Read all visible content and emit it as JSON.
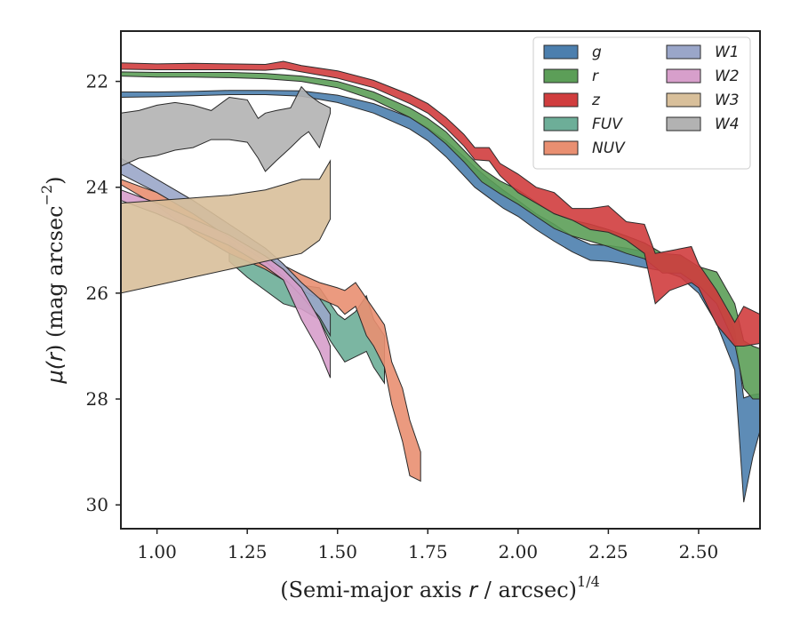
{
  "chart_data": {
    "type": "area",
    "title": "",
    "xlabel_main": "(Semi-major axis ",
    "xlabel_var": "r",
    "xlabel_unit": " / arcsec)",
    "xlabel_exp": "1/4",
    "ylabel_main": "μ(",
    "ylabel_var": "r",
    "ylabel_unit": ") (mag arcsec",
    "ylabel_exp": "−2",
    "ylabel_close": ")",
    "xlim": [
      0.9,
      2.67
    ],
    "ylim": [
      30.45,
      21.05
    ],
    "y_inverted": true,
    "grid": false,
    "legend_position": "top-right",
    "xticks": [
      1.0,
      1.25,
      1.5,
      1.75,
      2.0,
      2.25,
      2.5
    ],
    "xtick_labels": [
      "1.00",
      "1.25",
      "1.50",
      "1.75",
      "2.00",
      "2.25",
      "2.50"
    ],
    "yticks": [
      22,
      24,
      26,
      28,
      30
    ],
    "ytick_labels": [
      "22",
      "24",
      "26",
      "28",
      "30"
    ],
    "series": [
      {
        "name": "g",
        "color": "#4c7fae",
        "x": [
          0.9,
          1.0,
          1.1,
          1.2,
          1.3,
          1.4,
          1.5,
          1.6,
          1.7,
          1.75,
          1.8,
          1.85,
          1.88,
          1.92,
          1.96,
          2.0,
          2.05,
          2.1,
          2.15,
          2.2,
          2.25,
          2.3,
          2.35,
          2.4,
          2.45,
          2.5,
          2.55,
          2.6,
          2.625,
          2.65,
          2.67
        ],
        "y_lo": [
          22.2,
          22.2,
          22.19,
          22.17,
          22.17,
          22.18,
          22.26,
          22.42,
          22.68,
          22.88,
          23.12,
          23.42,
          23.62,
          23.85,
          24.06,
          24.25,
          24.5,
          24.7,
          24.93,
          25.08,
          25.1,
          25.15,
          25.22,
          25.28,
          25.3,
          25.55,
          25.98,
          26.7,
          27.98,
          27.92,
          27.9
        ],
        "y_hi": [
          22.3,
          22.29,
          22.27,
          22.25,
          22.25,
          22.28,
          22.4,
          22.6,
          22.9,
          23.12,
          23.42,
          23.78,
          24.0,
          24.2,
          24.4,
          24.55,
          24.8,
          25.02,
          25.22,
          25.38,
          25.4,
          25.45,
          25.52,
          25.58,
          25.7,
          26.0,
          26.58,
          27.45,
          29.95,
          29.1,
          28.6
        ]
      },
      {
        "name": "r",
        "color": "#5c9e58",
        "x": [
          0.9,
          1.0,
          1.1,
          1.2,
          1.3,
          1.4,
          1.5,
          1.6,
          1.7,
          1.75,
          1.8,
          1.85,
          1.9,
          1.95,
          2.0,
          2.05,
          2.1,
          2.15,
          2.2,
          2.25,
          2.3,
          2.35,
          2.4,
          2.45,
          2.5,
          2.55,
          2.6,
          2.625,
          2.65,
          2.67
        ],
        "y_lo": [
          21.82,
          21.83,
          21.83,
          21.83,
          21.85,
          21.9,
          22.0,
          22.2,
          22.5,
          22.7,
          22.95,
          23.3,
          23.65,
          23.88,
          24.05,
          24.28,
          24.5,
          24.62,
          24.7,
          24.8,
          24.92,
          25.05,
          25.25,
          25.28,
          25.5,
          25.6,
          26.2,
          26.9,
          27.0,
          27.05
        ],
        "y_hi": [
          21.9,
          21.92,
          21.92,
          21.93,
          21.95,
          22.0,
          22.12,
          22.35,
          22.68,
          22.9,
          23.18,
          23.52,
          23.9,
          24.12,
          24.32,
          24.55,
          24.78,
          24.92,
          25.02,
          25.12,
          25.25,
          25.35,
          25.62,
          25.62,
          25.85,
          26.2,
          26.95,
          27.8,
          28.0,
          28.0
        ]
      },
      {
        "name": "z",
        "color": "#d03d3e",
        "x": [
          0.9,
          1.0,
          1.1,
          1.2,
          1.3,
          1.35,
          1.4,
          1.5,
          1.6,
          1.7,
          1.75,
          1.8,
          1.85,
          1.88,
          1.92,
          1.95,
          2.0,
          2.05,
          2.1,
          2.15,
          2.2,
          2.25,
          2.3,
          2.35,
          2.38,
          2.42,
          2.48,
          2.5,
          2.55,
          2.6,
          2.625,
          2.67
        ],
        "y_lo": [
          21.65,
          21.67,
          21.66,
          21.67,
          21.68,
          21.62,
          21.7,
          21.8,
          21.98,
          22.25,
          22.42,
          22.68,
          23.0,
          23.25,
          23.25,
          23.55,
          23.75,
          24.0,
          24.1,
          24.4,
          24.4,
          24.35,
          24.65,
          24.7,
          25.25,
          25.2,
          25.12,
          25.45,
          25.95,
          26.55,
          26.25,
          26.4
        ],
        "y_hi": [
          21.77,
          21.78,
          21.78,
          21.78,
          21.79,
          21.76,
          21.82,
          21.94,
          22.12,
          22.42,
          22.6,
          22.88,
          23.22,
          23.48,
          23.5,
          23.78,
          24.1,
          24.3,
          24.5,
          24.62,
          24.8,
          24.85,
          25.0,
          25.25,
          26.2,
          25.95,
          25.8,
          25.9,
          26.6,
          27.0,
          27.0,
          26.95
        ]
      },
      {
        "name": "FUV",
        "color": "#6dae98",
        "x": [
          1.2,
          1.25,
          1.3,
          1.35,
          1.4,
          1.45,
          1.48,
          1.5,
          1.52,
          1.55,
          1.58,
          1.6,
          1.63
        ],
        "y_lo": [
          25.0,
          25.3,
          25.55,
          25.75,
          25.85,
          25.9,
          26.2,
          26.4,
          26.5,
          26.35,
          26.05,
          26.5,
          26.8
        ],
        "y_hi": [
          25.4,
          25.7,
          25.95,
          26.2,
          26.3,
          26.5,
          26.9,
          27.1,
          27.3,
          27.2,
          27.1,
          27.4,
          27.7
        ]
      },
      {
        "name": "NUV",
        "color": "#e98f71",
        "x": [
          0.9,
          1.0,
          1.1,
          1.2,
          1.3,
          1.4,
          1.45,
          1.5,
          1.52,
          1.55,
          1.58,
          1.6,
          1.63,
          1.65,
          1.68,
          1.7,
          1.73
        ],
        "y_lo": [
          23.85,
          24.1,
          24.5,
          24.95,
          25.3,
          25.65,
          25.8,
          25.9,
          25.95,
          25.8,
          26.1,
          26.3,
          26.6,
          27.3,
          27.8,
          28.4,
          29.0
        ],
        "y_hi": [
          23.95,
          24.35,
          24.85,
          25.25,
          25.55,
          25.95,
          26.1,
          26.25,
          26.4,
          26.25,
          26.8,
          27.0,
          27.4,
          28.1,
          28.8,
          29.45,
          29.55
        ]
      },
      {
        "name": "W1",
        "color": "#9aa6c9",
        "x": [
          0.9,
          1.0,
          1.1,
          1.2,
          1.3,
          1.35,
          1.4,
          1.45,
          1.48
        ],
        "y_lo": [
          23.45,
          23.85,
          24.25,
          24.7,
          25.15,
          25.45,
          25.8,
          26.1,
          26.4
        ],
        "y_hi": [
          23.75,
          24.1,
          24.5,
          24.95,
          25.4,
          25.7,
          26.05,
          26.45,
          26.8
        ]
      },
      {
        "name": "W2",
        "color": "#d79fcb",
        "x": [
          0.9,
          1.0,
          1.1,
          1.2,
          1.3,
          1.35,
          1.4,
          1.45,
          1.48
        ],
        "y_lo": [
          24.05,
          24.3,
          24.6,
          24.9,
          25.3,
          25.55,
          25.9,
          26.5,
          27.0
        ],
        "y_hi": [
          24.25,
          24.5,
          24.8,
          25.1,
          25.5,
          25.75,
          26.5,
          27.1,
          27.6
        ]
      },
      {
        "name": "W3",
        "color": "#d8bf9a",
        "x": [
          0.9,
          1.0,
          1.1,
          1.2,
          1.3,
          1.4,
          1.45,
          1.48
        ],
        "y_lo": [
          24.3,
          24.25,
          24.2,
          24.15,
          24.05,
          23.85,
          23.85,
          23.5
        ],
        "y_hi": [
          26.0,
          25.85,
          25.7,
          25.55,
          25.4,
          25.25,
          25.0,
          24.6
        ]
      },
      {
        "name": "W4",
        "color": "#b2b2b2",
        "x": [
          0.9,
          0.95,
          1.0,
          1.05,
          1.1,
          1.15,
          1.2,
          1.25,
          1.28,
          1.3,
          1.33,
          1.37,
          1.4,
          1.42,
          1.45,
          1.48
        ],
        "y_lo": [
          22.6,
          22.55,
          22.45,
          22.4,
          22.45,
          22.55,
          22.3,
          22.35,
          22.7,
          22.6,
          22.55,
          22.5,
          22.1,
          22.25,
          22.4,
          22.5
        ],
        "y_hi": [
          23.6,
          23.45,
          23.4,
          23.3,
          23.25,
          23.1,
          23.1,
          23.15,
          23.45,
          23.7,
          23.5,
          23.25,
          23.05,
          22.95,
          23.25,
          22.6
        ]
      }
    ]
  }
}
